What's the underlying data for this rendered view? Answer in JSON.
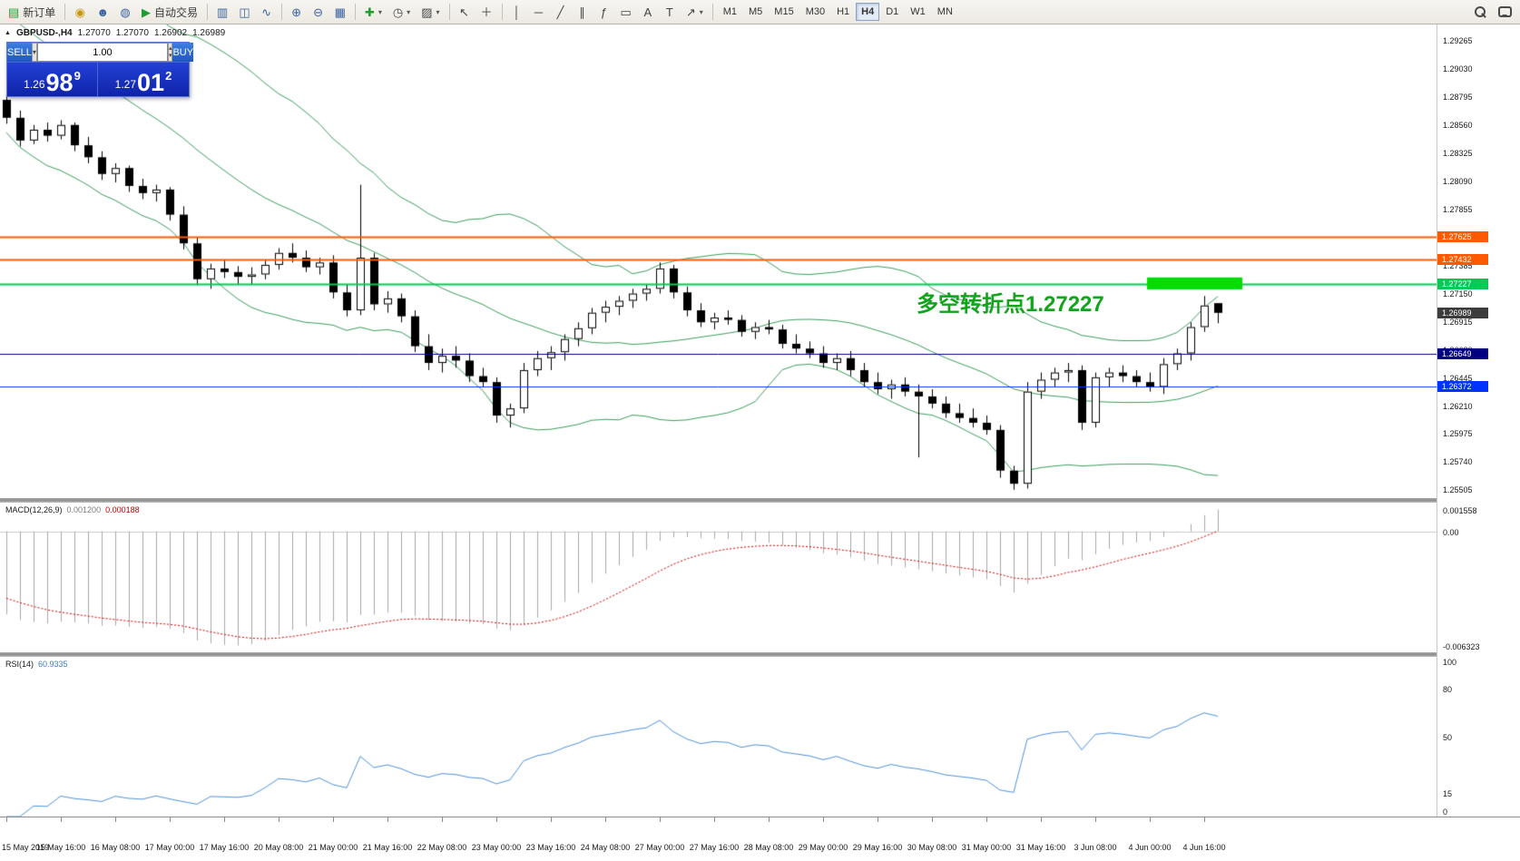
{
  "toolbar": {
    "new_order_label": "新订单",
    "autotrade_label": "自动交易",
    "timeframes": [
      "M1",
      "M5",
      "M15",
      "M30",
      "H1",
      "H4",
      "D1",
      "W1",
      "MN"
    ],
    "active_timeframe": "H4"
  },
  "trade_panel": {
    "sell_label": "SELL",
    "buy_label": "BUY",
    "volume": "1.00",
    "bid": {
      "prefix": "1.26",
      "big": "98",
      "sup": "9"
    },
    "ask": {
      "prefix": "1.27",
      "big": "01",
      "sup": "2"
    }
  },
  "chart_header": {
    "symbol": "GBPUSD-,H4",
    "open": "1.27070",
    "high": "1.27070",
    "low": "1.26902",
    "close": "1.26989"
  },
  "annotation": {
    "text": "多空转折点1.27227"
  },
  "levels": [
    {
      "price": 1.27625,
      "label": "1.27625",
      "color": "#ff5a00",
      "width": 2
    },
    {
      "price": 1.27432,
      "label": "1.27432",
      "color": "#ff5a00",
      "width": 2
    },
    {
      "price": 1.27227,
      "label": "1.27227",
      "color": "#00cc55",
      "width": 2
    },
    {
      "price": 1.26649,
      "label": "1.26649",
      "color": "#000080",
      "width": 1
    },
    {
      "price": 1.26372,
      "label": "1.26372",
      "color": "#0033ff",
      "width": 1
    }
  ],
  "current_price": {
    "label": "1.26989",
    "color": "#3c3c3c"
  },
  "price_scale": {
    "ticks": [
      1.29265,
      1.2903,
      1.28795,
      1.2856,
      1.28325,
      1.2809,
      1.27855,
      1.2762,
      1.27385,
      1.2715,
      1.26915,
      1.2668,
      1.26445,
      1.2621,
      1.25975,
      1.2574,
      1.25505
    ]
  },
  "macd": {
    "label": "MACD(12,26,9)",
    "value_main": "0.001200",
    "value_signal": "0.000188",
    "scale_max": "0.001558",
    "scale_zero": "0.00",
    "scale_min": "-0.006323"
  },
  "rsi": {
    "label": "RSI(14)",
    "value": "60.9335",
    "levels": [
      100,
      80,
      50,
      15,
      0
    ]
  },
  "time_labels": [
    {
      "bar": 0,
      "text": "15 May 2019"
    },
    {
      "bar": 4,
      "text": "15 May 16:00"
    },
    {
      "bar": 8,
      "text": "16 May 08:00"
    },
    {
      "bar": 12,
      "text": "17 May 00:00"
    },
    {
      "bar": 16,
      "text": "17 May 16:00"
    },
    {
      "bar": 20,
      "text": "20 May 08:00"
    },
    {
      "bar": 24,
      "text": "21 May 00:00"
    },
    {
      "bar": 28,
      "text": "21 May 16:00"
    },
    {
      "bar": 32,
      "text": "22 May 08:00"
    },
    {
      "bar": 36,
      "text": "23 May 00:00"
    },
    {
      "bar": 40,
      "text": "23 May 16:00"
    },
    {
      "bar": 44,
      "text": "24 May 08:00"
    },
    {
      "bar": 48,
      "text": "27 May 00:00"
    },
    {
      "bar": 52,
      "text": "27 May 16:00"
    },
    {
      "bar": 56,
      "text": "28 May 08:00"
    },
    {
      "bar": 60,
      "text": "29 May 00:00"
    },
    {
      "bar": 64,
      "text": "29 May 16:00"
    },
    {
      "bar": 68,
      "text": "30 May 08:00"
    },
    {
      "bar": 72,
      "text": "31 May 00:00"
    },
    {
      "bar": 76,
      "text": "31 May 16:00"
    },
    {
      "bar": 80,
      "text": "3 Jun 08:00"
    },
    {
      "bar": 84,
      "text": "4 Jun 00:00"
    },
    {
      "bar": 88,
      "text": "4 Jun 16:00"
    }
  ],
  "chart_data": {
    "type": "candlestick",
    "symbol": "GBPUSD",
    "timeframe": "H4",
    "ylim": [
      1.2544,
      1.294
    ],
    "colors": {
      "band": "#3d9e5f",
      "up": "#ffffff",
      "down": "#000000",
      "outline": "#000000",
      "macd_hist": "#a8a8a8",
      "macd_signal": "#d00000",
      "rsi_line": "#4f93dd",
      "highlight": "#00dd00"
    },
    "indicators": {
      "bollinger_period": 20,
      "bollinger_dev": 2,
      "macd": [
        12,
        26,
        9
      ],
      "rsi": 14
    },
    "highlight_rect": {
      "x1_bar": 83.8,
      "x2_bar": 90.8,
      "price_top": 1.27285,
      "price_bottom": 1.27185
    },
    "candles": [
      [
        1.2877,
        1.2881,
        1.2857,
        1.2862
      ],
      [
        1.2862,
        1.2868,
        1.2838,
        1.2843
      ],
      [
        1.2843,
        1.2856,
        1.284,
        1.2852
      ],
      [
        1.2852,
        1.2858,
        1.2842,
        1.2847
      ],
      [
        1.2847,
        1.286,
        1.2844,
        1.2856
      ],
      [
        1.2856,
        1.2858,
        1.2834,
        1.2839
      ],
      [
        1.2839,
        1.2846,
        1.2824,
        1.2829
      ],
      [
        1.2829,
        1.2834,
        1.281,
        1.2815
      ],
      [
        1.2815,
        1.2824,
        1.2808,
        1.282
      ],
      [
        1.282,
        1.2822,
        1.28,
        1.2805
      ],
      [
        1.2805,
        1.2811,
        1.2794,
        1.2799
      ],
      [
        1.2799,
        1.2806,
        1.2792,
        1.2802
      ],
      [
        1.2802,
        1.2804,
        1.2776,
        1.2781
      ],
      [
        1.2781,
        1.2788,
        1.2752,
        1.2757
      ],
      [
        1.2757,
        1.2762,
        1.2722,
        1.2727
      ],
      [
        1.2727,
        1.274,
        1.2719,
        1.2736
      ],
      [
        1.2736,
        1.2743,
        1.2728,
        1.2733
      ],
      [
        1.2733,
        1.2738,
        1.2723,
        1.2729
      ],
      [
        1.2729,
        1.2737,
        1.2723,
        1.2731
      ],
      [
        1.2731,
        1.2743,
        1.2727,
        1.2739
      ],
      [
        1.2739,
        1.2753,
        1.2735,
        1.2749
      ],
      [
        1.2749,
        1.2757,
        1.2741,
        1.2745
      ],
      [
        1.2745,
        1.2751,
        1.2733,
        1.2737
      ],
      [
        1.2737,
        1.2745,
        1.2731,
        1.2741
      ],
      [
        1.2741,
        1.2747,
        1.2711,
        1.2716
      ],
      [
        1.2716,
        1.2723,
        1.2696,
        1.2701
      ],
      [
        1.2701,
        1.2806,
        1.2697,
        1.2745
      ],
      [
        1.2745,
        1.2749,
        1.2701,
        1.2706
      ],
      [
        1.2706,
        1.2717,
        1.2699,
        1.2711
      ],
      [
        1.2711,
        1.2715,
        1.2691,
        1.2696
      ],
      [
        1.2696,
        1.2701,
        1.2666,
        1.2671
      ],
      [
        1.2671,
        1.2681,
        1.2651,
        1.2657
      ],
      [
        1.2657,
        1.2669,
        1.2649,
        1.2663
      ],
      [
        1.2663,
        1.2671,
        1.2653,
        1.2659
      ],
      [
        1.2659,
        1.2665,
        1.2641,
        1.2646
      ],
      [
        1.2646,
        1.2653,
        1.2637,
        1.2641
      ],
      [
        1.2641,
        1.2645,
        1.2607,
        1.2613
      ],
      [
        1.2613,
        1.2623,
        1.2603,
        1.2619
      ],
      [
        1.2619,
        1.2657,
        1.2615,
        1.2651
      ],
      [
        1.2651,
        1.2667,
        1.2646,
        1.2661
      ],
      [
        1.2661,
        1.2671,
        1.2651,
        1.2666
      ],
      [
        1.2666,
        1.2681,
        1.2659,
        1.2677
      ],
      [
        1.2677,
        1.2691,
        1.2671,
        1.2686
      ],
      [
        1.2686,
        1.2703,
        1.2681,
        1.2699
      ],
      [
        1.2699,
        1.2709,
        1.2691,
        1.2704
      ],
      [
        1.2704,
        1.2713,
        1.2697,
        1.2709
      ],
      [
        1.2709,
        1.2719,
        1.2703,
        1.2715
      ],
      [
        1.2715,
        1.2723,
        1.2709,
        1.2719
      ],
      [
        1.2719,
        1.2741,
        1.2715,
        1.2736
      ],
      [
        1.2736,
        1.2739,
        1.2711,
        1.2716
      ],
      [
        1.2716,
        1.2721,
        1.2696,
        1.2701
      ],
      [
        1.2701,
        1.2707,
        1.2687,
        1.2691
      ],
      [
        1.2691,
        1.2699,
        1.2685,
        1.2695
      ],
      [
        1.2695,
        1.2701,
        1.2689,
        1.2693
      ],
      [
        1.2693,
        1.2697,
        1.2679,
        1.2683
      ],
      [
        1.2683,
        1.2691,
        1.2677,
        1.2687
      ],
      [
        1.2687,
        1.2693,
        1.2681,
        1.2685
      ],
      [
        1.2685,
        1.2689,
        1.2669,
        1.2673
      ],
      [
        1.2673,
        1.2681,
        1.2665,
        1.2669
      ],
      [
        1.2669,
        1.2675,
        1.2661,
        1.2665
      ],
      [
        1.2665,
        1.2671,
        1.2653,
        1.2657
      ],
      [
        1.2657,
        1.2665,
        1.2651,
        1.2661
      ],
      [
        1.2661,
        1.2667,
        1.2646,
        1.2651
      ],
      [
        1.2651,
        1.2657,
        1.2637,
        1.2641
      ],
      [
        1.2641,
        1.2649,
        1.2631,
        1.2635
      ],
      [
        1.2635,
        1.2643,
        1.2627,
        1.2639
      ],
      [
        1.2639,
        1.2645,
        1.2629,
        1.2633
      ],
      [
        1.2633,
        1.2639,
        1.2578,
        1.2629
      ],
      [
        1.2629,
        1.2635,
        1.2619,
        1.2623
      ],
      [
        1.2623,
        1.2629,
        1.2611,
        1.2615
      ],
      [
        1.2615,
        1.2623,
        1.2607,
        1.2611
      ],
      [
        1.2611,
        1.2619,
        1.2603,
        1.2607
      ],
      [
        1.2607,
        1.2613,
        1.2597,
        1.2601
      ],
      [
        1.2601,
        1.2605,
        1.2561,
        1.2567
      ],
      [
        1.2567,
        1.2571,
        1.2551,
        1.2556
      ],
      [
        1.2556,
        1.2641,
        1.2552,
        1.2633
      ],
      [
        1.2633,
        1.2649,
        1.2627,
        1.2643
      ],
      [
        1.2643,
        1.2653,
        1.2637,
        1.2649
      ],
      [
        1.2649,
        1.2657,
        1.2641,
        1.2651
      ],
      [
        1.2651,
        1.2655,
        1.2601,
        1.2607
      ],
      [
        1.2607,
        1.2649,
        1.2603,
        1.2645
      ],
      [
        1.2645,
        1.2653,
        1.2637,
        1.2649
      ],
      [
        1.2649,
        1.2655,
        1.2641,
        1.2646
      ],
      [
        1.2646,
        1.2651,
        1.2637,
        1.2641
      ],
      [
        1.2641,
        1.2649,
        1.2633,
        1.2637
      ],
      [
        1.2637,
        1.2661,
        1.2631,
        1.2656
      ],
      [
        1.2656,
        1.2669,
        1.2651,
        1.2665
      ],
      [
        1.2665,
        1.2691,
        1.2659,
        1.2687
      ],
      [
        1.2687,
        1.2713,
        1.2683,
        1.2705
      ],
      [
        1.2707,
        1.2707,
        1.26902,
        1.26989
      ]
    ]
  }
}
